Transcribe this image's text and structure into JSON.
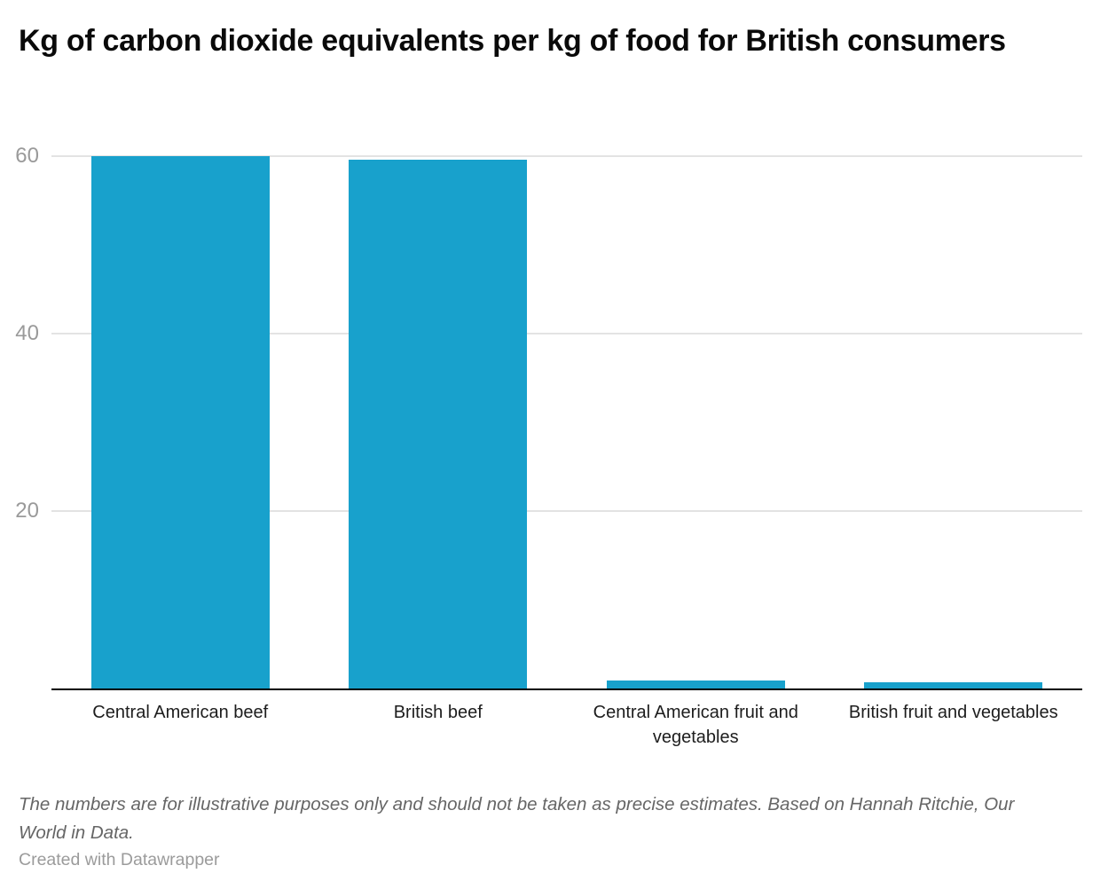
{
  "header": {
    "title": "Kg of carbon dioxide equivalents per kg of food for British consumers"
  },
  "chart_data": {
    "type": "bar",
    "title": "Kg of carbon dioxide equivalents per kg of food for British consumers",
    "categories": [
      "Central American beef",
      "British beef",
      "Central American fruit and vegetables",
      "British fruit and vegetables"
    ],
    "values": [
      60,
      59.6,
      0.9,
      0.7
    ],
    "xlabel": "",
    "ylabel": "",
    "ylim": [
      0,
      60
    ],
    "yticks": [
      20,
      40,
      60
    ],
    "grid": "horizontal",
    "legend": "none",
    "bar_color": "#18a1cc"
  },
  "footer": {
    "note": "The numbers are for illustrative purposes only and should not be taken as precise estimates. Based on Hannah Ritchie, Our World in Data.",
    "credit": "Created with Datawrapper"
  },
  "colors": {
    "background": "#ffffff",
    "bar": "#18a1cc",
    "axis_line": "#000000",
    "gridline": "#e3e3e3",
    "tick_label": "#9a9a9a",
    "category_label": "#1d1d1d",
    "note_text": "#666666",
    "credit_text": "#9b9b9b"
  }
}
